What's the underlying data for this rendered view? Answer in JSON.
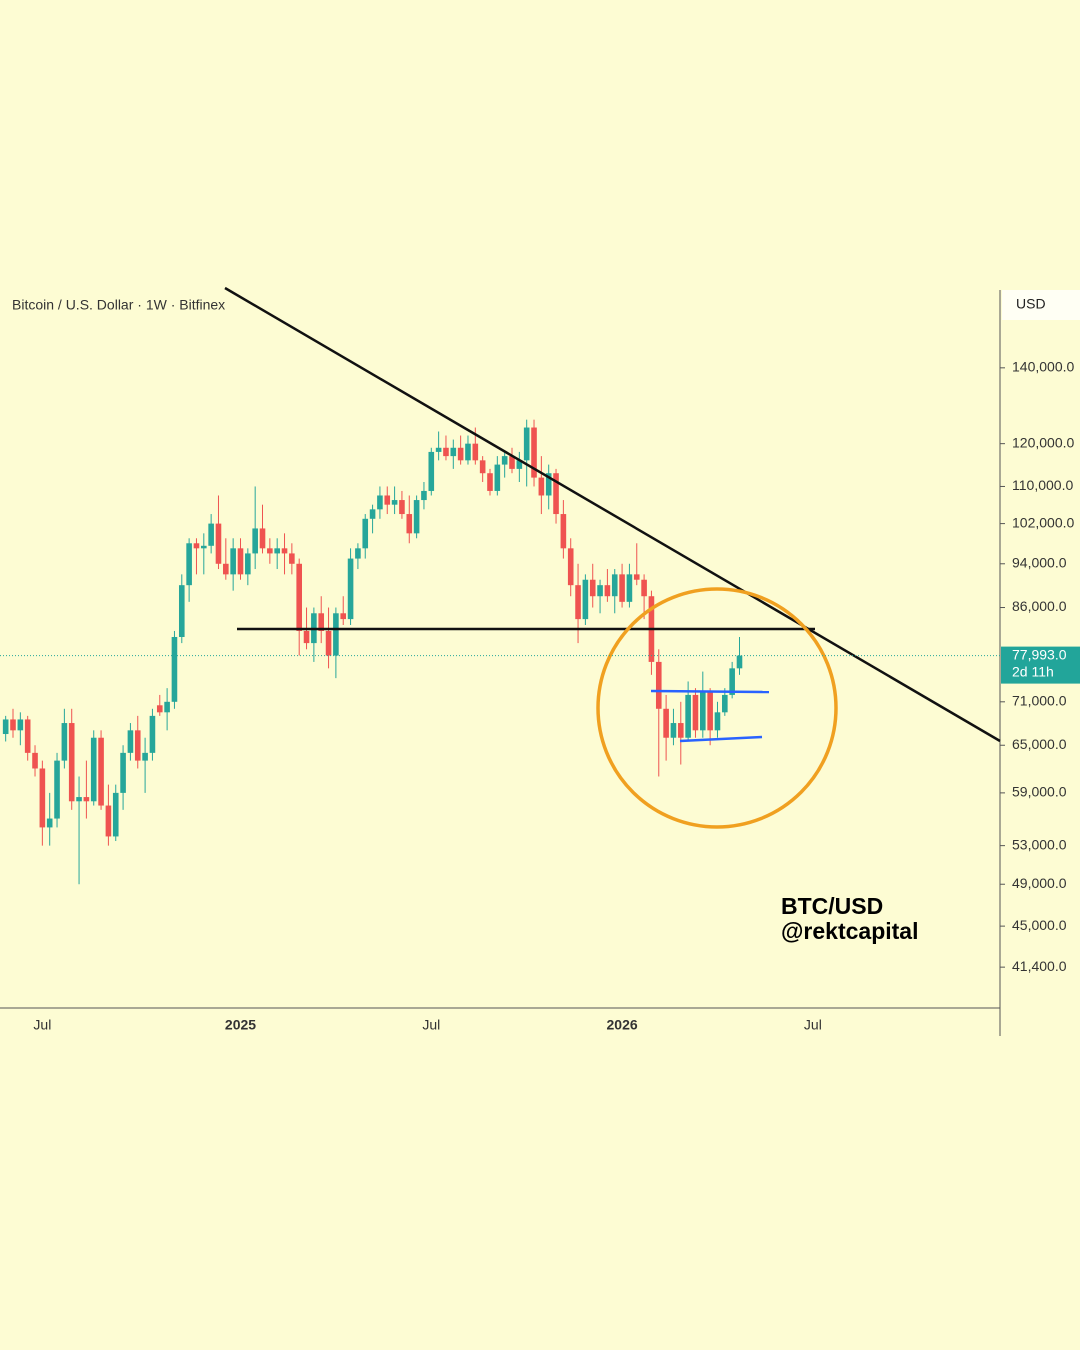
{
  "chart_data": {
    "type": "candlestick",
    "title": "Bitcoin / U.S. Dollar · 1W · Bitfinex",
    "y_axis_label": "USD",
    "annotations": [
      "BTC/USD",
      "@rektcapital"
    ],
    "log_scale": true,
    "ylim": [
      38100,
      164000
    ],
    "yticks": [
      {
        "value": 140000,
        "label": "140,000.0"
      },
      {
        "value": 120000,
        "label": "120,000.0"
      },
      {
        "value": 110000,
        "label": "110,000.0"
      },
      {
        "value": 102000,
        "label": "102,000.0"
      },
      {
        "value": 94000,
        "label": "94,000.0"
      },
      {
        "value": 86000,
        "label": "86,000.0"
      },
      {
        "value": 71000,
        "label": "71,000.0"
      },
      {
        "value": 65000,
        "label": "65,000.0"
      },
      {
        "value": 59000,
        "label": "59,000.0"
      },
      {
        "value": 53000,
        "label": "53,000.0"
      },
      {
        "value": 49000,
        "label": "49,000.0"
      },
      {
        "value": 45000,
        "label": "45,000.0"
      },
      {
        "value": 41400,
        "label": "41,400.0"
      }
    ],
    "last_price": {
      "value": 77993,
      "label": "77,993.0"
    },
    "countdown": "2d 11h",
    "up_color": "#26a69a",
    "down_color": "#ef5350",
    "categories": [
      null,
      null,
      null,
      null,
      null,
      "Jul",
      null,
      null,
      null,
      null,
      null,
      null,
      null,
      null,
      null,
      null,
      null,
      null,
      null,
      null,
      null,
      null,
      null,
      null,
      null,
      null,
      null,
      null,
      null,
      null,
      null,
      null,
      "2025",
      null,
      null,
      null,
      null,
      null,
      null,
      null,
      null,
      null,
      null,
      null,
      null,
      null,
      null,
      null,
      null,
      null,
      null,
      null,
      null,
      null,
      null,
      null,
      null,
      null,
      "Jul",
      null,
      null,
      null,
      null,
      null,
      null,
      null,
      null,
      null,
      null,
      null,
      null,
      null,
      null,
      null,
      null,
      null,
      null,
      null,
      null,
      null,
      null,
      null,
      null,
      null,
      "2026",
      null,
      null,
      null,
      null,
      null,
      null,
      null,
      null,
      null,
      null,
      null,
      null,
      null,
      null,
      null,
      null,
      null,
      null,
      null,
      null,
      null,
      null,
      null,
      null,
      null,
      "Jul",
      null,
      null,
      null,
      null,
      null,
      null,
      null,
      null,
      null,
      null,
      null,
      null,
      null,
      null,
      null,
      null,
      null,
      null,
      null,
      null,
      null,
      null,
      null,
      null,
      null
    ],
    "open": [
      66500,
      68500,
      67000,
      68500,
      64000,
      62000,
      55000,
      56000,
      63000,
      68000,
      58000,
      58500,
      58000,
      66000,
      57500,
      54000,
      59000,
      64000,
      67000,
      63000,
      64000,
      70500,
      69500,
      71000,
      81000,
      90000,
      98000,
      97000,
      97500,
      102000,
      94000,
      92000,
      97000,
      92000,
      96000,
      101000,
      97000,
      96000,
      97000,
      96000,
      94000,
      82000,
      80000,
      85000,
      82000,
      78000,
      85000,
      84000,
      95000,
      97000,
      103000,
      105000,
      108000,
      106000,
      107000,
      104000,
      100000,
      107000,
      109000,
      118000,
      119000,
      117000,
      119000,
      116000,
      120000,
      116000,
      113000,
      109000,
      115000,
      117000,
      114000,
      116000,
      124000,
      112000,
      108000,
      113000,
      104000,
      97000,
      90000,
      84000,
      91000,
      88000,
      90000,
      88000,
      92000,
      87000,
      92000,
      91000,
      88000,
      77000,
      70000,
      66000,
      68000,
      66000,
      72000,
      67000,
      72500,
      67000,
      69500,
      72000,
      76000,
      null,
      null,
      null,
      null,
      null,
      null,
      null,
      null,
      null,
      null,
      null,
      null,
      null,
      null,
      null,
      null,
      null,
      null,
      null,
      null,
      null,
      null,
      null,
      null,
      null,
      null,
      null,
      null,
      null,
      null,
      null,
      null,
      null,
      null,
      null
    ],
    "high": [
      69000,
      70000,
      69500,
      69000,
      65000,
      63000,
      59000,
      64000,
      70000,
      70000,
      61000,
      63000,
      67000,
      67000,
      60000,
      60000,
      65000,
      68000,
      69000,
      66000,
      70000,
      72000,
      73000,
      82000,
      92000,
      99000,
      99000,
      100000,
      104000,
      108000,
      99000,
      99000,
      99000,
      97000,
      110000,
      106000,
      99000,
      99000,
      100000,
      98000,
      95000,
      86000,
      86000,
      88000,
      86000,
      86000,
      88000,
      97000,
      98000,
      104000,
      106000,
      110000,
      110000,
      110000,
      109000,
      108000,
      108000,
      111000,
      119000,
      123000,
      122000,
      121000,
      122000,
      122000,
      124000,
      117000,
      114000,
      117000,
      118000,
      119000,
      118000,
      126000,
      126000,
      117000,
      115000,
      114000,
      107000,
      99000,
      94000,
      92000,
      94000,
      91000,
      93000,
      93000,
      94000,
      94000,
      98000,
      92000,
      89000,
      79000,
      72000,
      70000,
      71000,
      74000,
      73000,
      75500,
      73000,
      71000,
      73000,
      77000,
      81000,
      null,
      null,
      null,
      null,
      null,
      null,
      null,
      null,
      null,
      null,
      null,
      null,
      null,
      null,
      null,
      null,
      null,
      null,
      null,
      null,
      null,
      null,
      null,
      null,
      null,
      null,
      null,
      null,
      null,
      null,
      null,
      null,
      null,
      null,
      null
    ],
    "low": [
      65500,
      66000,
      65000,
      63000,
      61000,
      53000,
      53000,
      55000,
      62000,
      57000,
      49000,
      56000,
      57500,
      57000,
      53000,
      53500,
      57000,
      63000,
      62000,
      59000,
      63000,
      69000,
      67000,
      70000,
      80000,
      87000,
      92000,
      92000,
      96000,
      93000,
      91000,
      89000,
      91000,
      90000,
      93000,
      96000,
      94000,
      93000,
      92000,
      92000,
      78000,
      79000,
      77000,
      80000,
      76000,
      74500,
      83000,
      83000,
      93000,
      95000,
      100000,
      103000,
      104000,
      104000,
      103000,
      98000,
      99000,
      105000,
      108000,
      116000,
      116000,
      114000,
      115000,
      115000,
      115000,
      111000,
      108000,
      108000,
      112000,
      113000,
      111000,
      110000,
      110000,
      104000,
      105000,
      102000,
      95000,
      88000,
      80000,
      83000,
      86000,
      85000,
      87000,
      85000,
      86000,
      86000,
      90000,
      84000,
      75000,
      61000,
      63000,
      65000,
      62500,
      65500,
      66000,
      66000,
      65000,
      66000,
      69000,
      71500,
      75000,
      null,
      null,
      null,
      null,
      null,
      null,
      null,
      null,
      null,
      null,
      null,
      null,
      null,
      null,
      null,
      null,
      null,
      null,
      null,
      null,
      null,
      null,
      null,
      null,
      null,
      null,
      null,
      null,
      null,
      null,
      null,
      null,
      null,
      null,
      null
    ],
    "close": [
      68500,
      67000,
      68500,
      64000,
      62000,
      55000,
      56000,
      63000,
      68000,
      58000,
      58500,
      58000,
      66000,
      57500,
      54000,
      59000,
      64000,
      67000,
      63000,
      64000,
      69000,
      69500,
      71000,
      81000,
      90000,
      98000,
      97000,
      97500,
      102000,
      94000,
      92000,
      97000,
      92000,
      96000,
      101000,
      97000,
      96000,
      97000,
      96000,
      94000,
      82000,
      80000,
      85000,
      82000,
      78000,
      85000,
      84000,
      95000,
      97000,
      103000,
      105000,
      108000,
      106000,
      107000,
      104000,
      100000,
      107000,
      109000,
      118000,
      119000,
      117000,
      119000,
      116000,
      120000,
      116000,
      113000,
      109000,
      115000,
      117000,
      114000,
      116000,
      124000,
      112000,
      108000,
      113000,
      104000,
      97000,
      90000,
      84000,
      91000,
      88000,
      90000,
      88000,
      92000,
      87000,
      92000,
      91000,
      88000,
      77000,
      70000,
      66000,
      68000,
      66000,
      72000,
      67000,
      72500,
      67000,
      69500,
      72000,
      76000,
      77993,
      null,
      null,
      null,
      null,
      null,
      null,
      null,
      null,
      null,
      null,
      null,
      null,
      null,
      null,
      null,
      null,
      null,
      null,
      null,
      null,
      null,
      null,
      null,
      null,
      null,
      null,
      null,
      null,
      null,
      null,
      null,
      null,
      null,
      null,
      null
    ]
  }
}
